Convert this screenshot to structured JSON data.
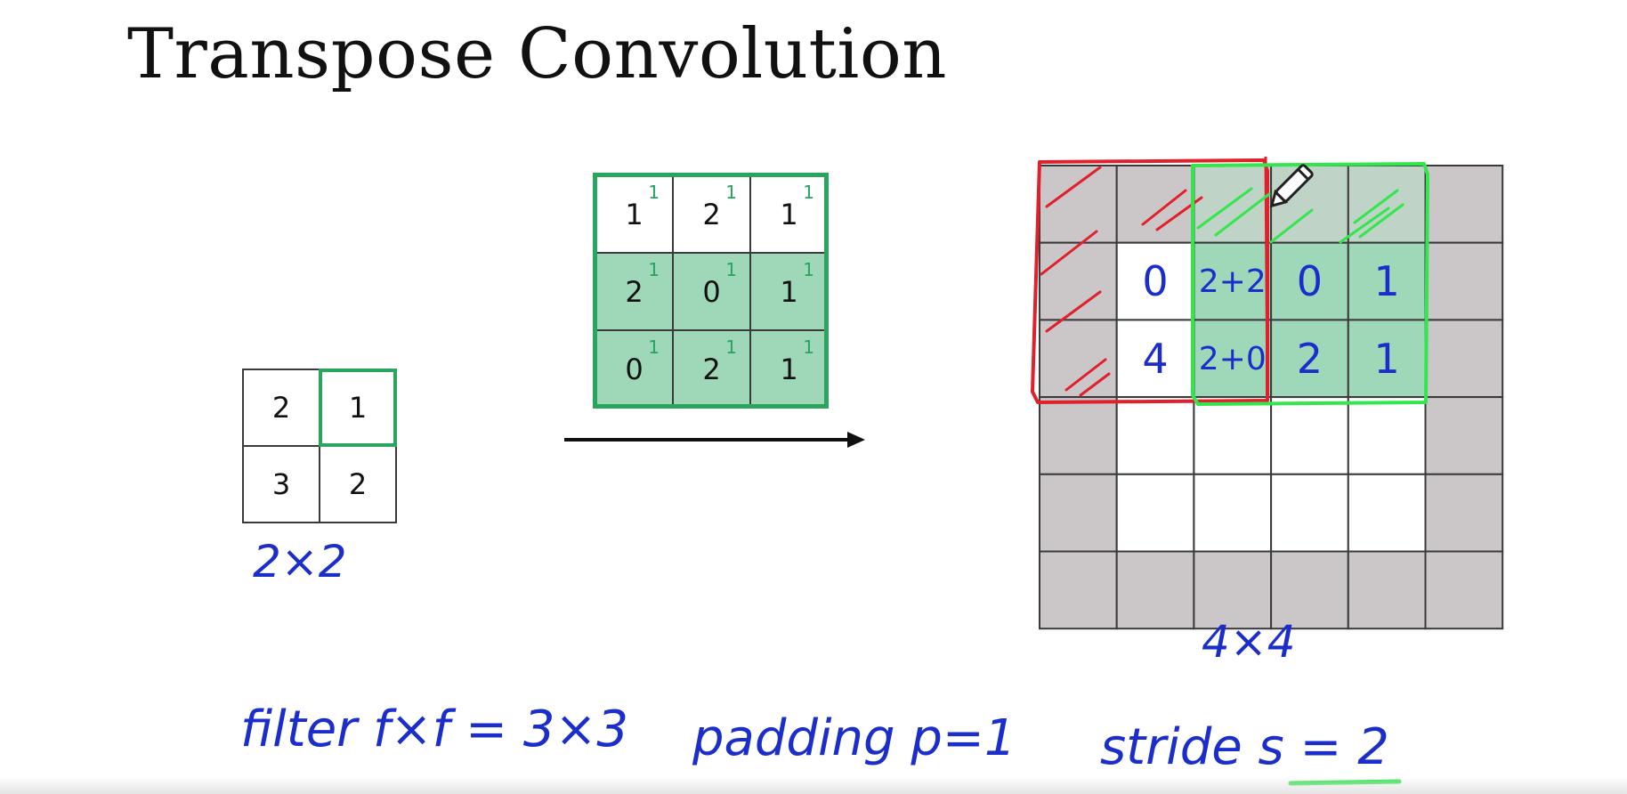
{
  "title": "Transpose Convolution",
  "input_matrix": {
    "values": [
      "2",
      "1",
      "3",
      "2"
    ],
    "highlighted_index": 1
  },
  "filter_matrix": {
    "values": [
      "1",
      "2",
      "1",
      "2",
      "0",
      "1",
      "0",
      "2",
      "1"
    ],
    "superscript": "1"
  },
  "output_matrix": {
    "handwritten_cells": [
      {
        "row": 1,
        "col": 1,
        "text": "0"
      },
      {
        "row": 1,
        "col": 2,
        "text": "2+2"
      },
      {
        "row": 1,
        "col": 3,
        "text": "0"
      },
      {
        "row": 1,
        "col": 4,
        "text": "1"
      },
      {
        "row": 2,
        "col": 1,
        "text": "4"
      },
      {
        "row": 2,
        "col": 2,
        "text": "2+0"
      },
      {
        "row": 2,
        "col": 3,
        "text": "2"
      },
      {
        "row": 2,
        "col": 4,
        "text": "1"
      }
    ]
  },
  "annotations": {
    "input_size": "2×2",
    "output_size": "4×4",
    "filter": "filter  f×f = 3×3",
    "padding": "padding  p=1",
    "stride": "stride  s = 2"
  },
  "colors": {
    "teal_fill": "#9fd8b9",
    "green_border": "#2aa55e",
    "bright_green": "#33e64d",
    "red": "#e0202a",
    "gray_pad": "#cbc7c9",
    "ink_blue": "#1b2ecc"
  },
  "icons": [
    "pencil-cursor-icon",
    "arrow-right-icon"
  ]
}
